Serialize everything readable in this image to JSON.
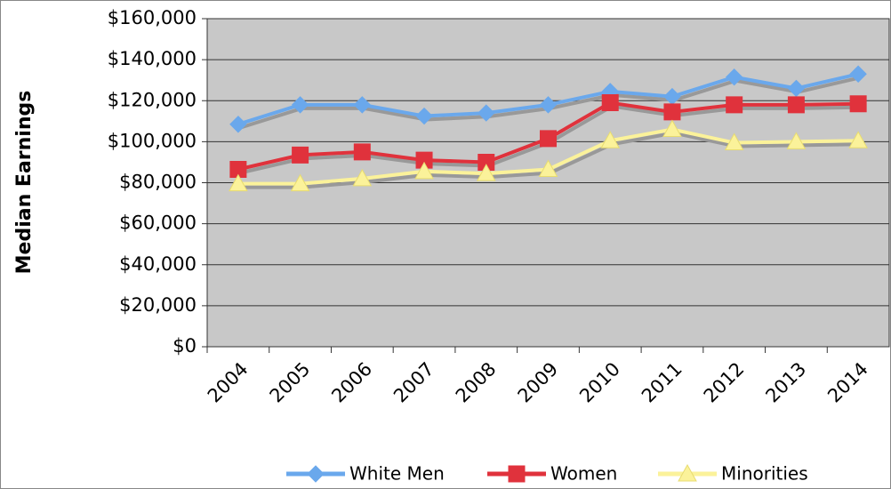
{
  "chart_data": {
    "type": "line",
    "y_label": "Median Earnings",
    "categories": [
      "2004",
      "2005",
      "2006",
      "2007",
      "2008",
      "2009",
      "2010",
      "2011",
      "2012",
      "2013",
      "2014"
    ],
    "series": [
      {
        "name": "White Men",
        "color": "#6aa8ec",
        "marker": "diamond",
        "values": [
          108500,
          118000,
          118000,
          112500,
          114000,
          118000,
          124500,
          122000,
          131500,
          126000,
          133000
        ]
      },
      {
        "name": "Women",
        "color": "#e0323c",
        "marker": "square",
        "values": [
          86500,
          93500,
          95000,
          91000,
          90000,
          101500,
          119000,
          114500,
          118000,
          118000,
          118500
        ]
      },
      {
        "name": "Minorities",
        "color": "#fbf29a",
        "marker": "triangle",
        "values": [
          79500,
          79500,
          82000,
          85500,
          84500,
          86500,
          100500,
          106000,
          99500,
          100000,
          100500
        ]
      }
    ],
    "ylim": [
      0,
      160000
    ],
    "yticks": [
      {
        "value": 0,
        "label": "$0"
      },
      {
        "value": 20000,
        "label": "$20,000"
      },
      {
        "value": 40000,
        "label": "$40,000"
      },
      {
        "value": 60000,
        "label": "$60,000"
      },
      {
        "value": 80000,
        "label": "$80,000"
      },
      {
        "value": 100000,
        "label": "$100,000"
      },
      {
        "value": 120000,
        "label": "$120,000"
      },
      {
        "value": 140000,
        "label": "$140,000"
      },
      {
        "value": 160000,
        "label": "$160,000"
      }
    ],
    "grid": true,
    "legend": "bottom"
  }
}
